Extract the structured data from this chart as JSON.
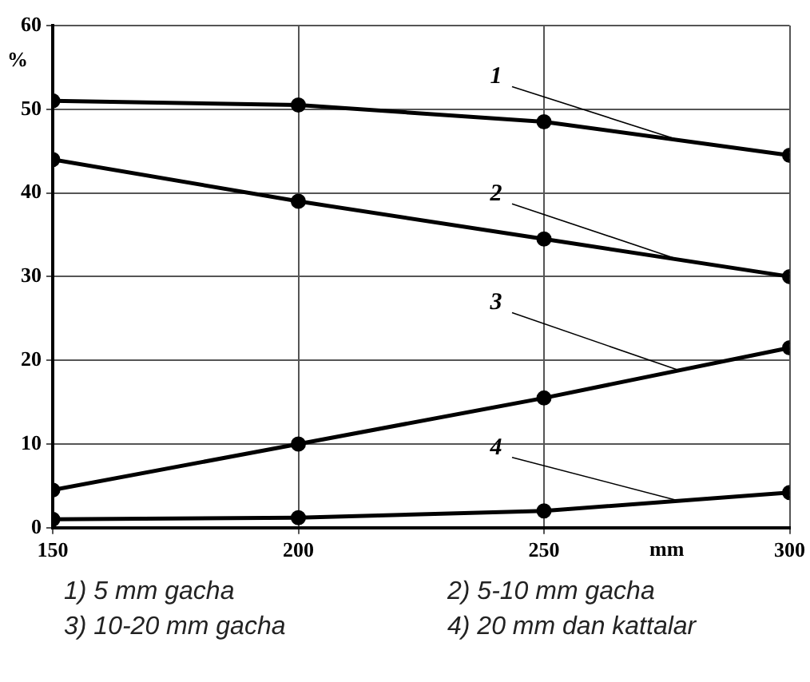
{
  "chart_data": {
    "type": "line",
    "x": [
      150,
      200,
      250,
      300
    ],
    "xlabel": "mm",
    "ylabel": "%",
    "xlim": [
      150,
      300
    ],
    "xticks": [
      150,
      200,
      250,
      300
    ],
    "ylim": [
      0,
      60
    ],
    "yticks": [
      0,
      10,
      20,
      30,
      40,
      50,
      60
    ],
    "grid": true,
    "legend": false,
    "marker": "circle",
    "line_style": "solid",
    "series": [
      {
        "name": "1",
        "color": "#000000",
        "values": [
          51,
          50.5,
          48.5,
          44.5
        ]
      },
      {
        "name": "2",
        "color": "#000000",
        "values": [
          44,
          39,
          34.5,
          30
        ]
      },
      {
        "name": "3",
        "color": "#000000",
        "values": [
          4.5,
          10,
          15.5,
          21.5
        ]
      },
      {
        "name": "4",
        "color": "#000000",
        "values": [
          1,
          1.2,
          2,
          4.2
        ]
      }
    ],
    "annotations": [
      "1) 5 mm gacha",
      "2) 5-10 mm gacha",
      "3) 10-20 mm gacha",
      "4) 20 mm dan kattalar"
    ]
  }
}
